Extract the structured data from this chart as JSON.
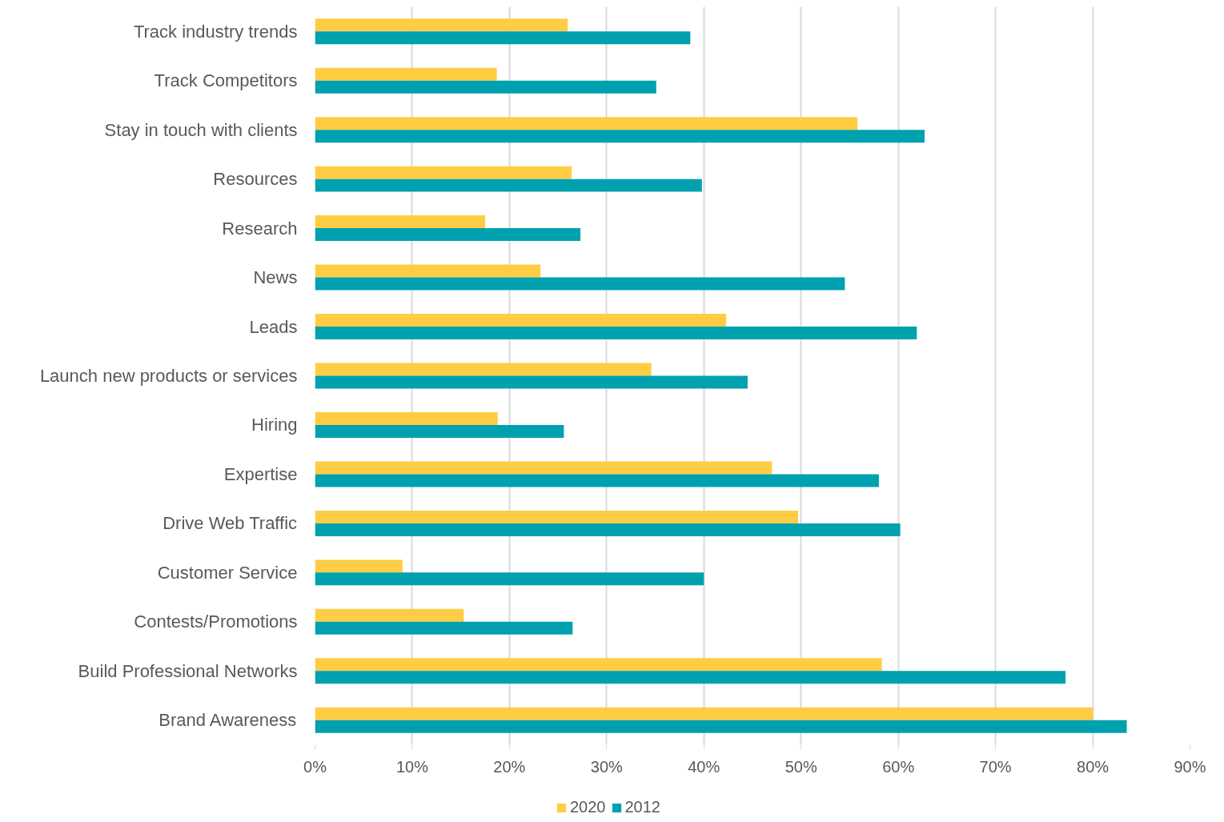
{
  "chart_data": {
    "type": "bar",
    "orientation": "horizontal",
    "categories": [
      "Track industry trends",
      "Track Competitors",
      "Stay in touch with clients",
      "Resources",
      "Research",
      "News",
      "Leads",
      "Launch new products or services",
      "Hiring",
      "Expertise",
      "Drive Web Traffic",
      "Customer Service",
      "Contests/Promotions",
      "Build Professional Networks",
      "Brand Awareness"
    ],
    "series": [
      {
        "name": "2020",
        "color": "#ffcd44",
        "values": [
          26.0,
          18.7,
          55.8,
          26.4,
          17.5,
          23.2,
          42.3,
          34.6,
          18.8,
          47.0,
          49.7,
          9.0,
          15.3,
          58.3,
          80.0
        ]
      },
      {
        "name": "2012",
        "color": "#00a1ae",
        "values": [
          38.6,
          35.1,
          62.7,
          39.8,
          27.3,
          54.5,
          61.9,
          44.5,
          25.6,
          58.0,
          60.2,
          40.0,
          26.5,
          77.2,
          83.5
        ]
      }
    ],
    "xlim": [
      0,
      90
    ],
    "xticks": [
      {
        "value": 0,
        "label": "0%"
      },
      {
        "value": 10,
        "label": "10%"
      },
      {
        "value": 20,
        "label": "20%"
      },
      {
        "value": 30,
        "label": "30%"
      },
      {
        "value": 40,
        "label": "40%"
      },
      {
        "value": 50,
        "label": "50%"
      },
      {
        "value": 60,
        "label": "60%"
      },
      {
        "value": 70,
        "label": "70%"
      },
      {
        "value": 80,
        "label": "80%"
      },
      {
        "value": 90,
        "label": "90%"
      }
    ],
    "grid": "x",
    "legend": "bottom"
  }
}
